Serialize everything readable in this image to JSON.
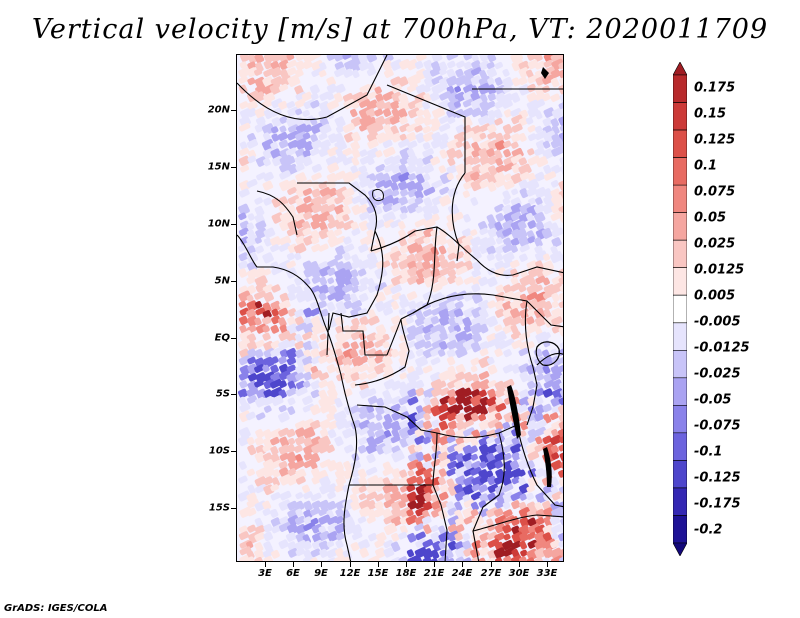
{
  "title": "Vertical velocity [m/s] at 700hPa, VT: 2020011709",
  "footer": "GrADS: IGES/COLA",
  "lat_labels": [
    "20N",
    "15N",
    "10N",
    "5N",
    "EQ",
    "5S",
    "10S",
    "15S"
  ],
  "lon_labels": [
    "3E",
    "6E",
    "9E",
    "12E",
    "15E",
    "18E",
    "21E",
    "24E",
    "27E",
    "30E",
    "33E"
  ],
  "colorbar": {
    "labels": [
      "0.175",
      "0.15",
      "0.125",
      "0.1",
      "0.075",
      "0.05",
      "0.025",
      "0.0125",
      "0.005",
      "-0.005",
      "-0.0125",
      "-0.025",
      "-0.05",
      "-0.075",
      "-0.1",
      "-0.125",
      "-0.175",
      "-0.2"
    ],
    "colors": [
      "#a01d23",
      "#b82a2c",
      "#cc3a38",
      "#dc5048",
      "#e86b62",
      "#f0877f",
      "#f5a6a0",
      "#f9c6c2",
      "#fde6e4",
      "#ffffff",
      "#e6e4fd",
      "#c8c4f8",
      "#aaa3f2",
      "#8a82ea",
      "#6c63de",
      "#4e46cc",
      "#3428b4",
      "#1e1296",
      "#13087a"
    ]
  },
  "colors": {
    "positive": "#e8584f",
    "negative": "#6a5ff0",
    "border": "#000000"
  }
}
